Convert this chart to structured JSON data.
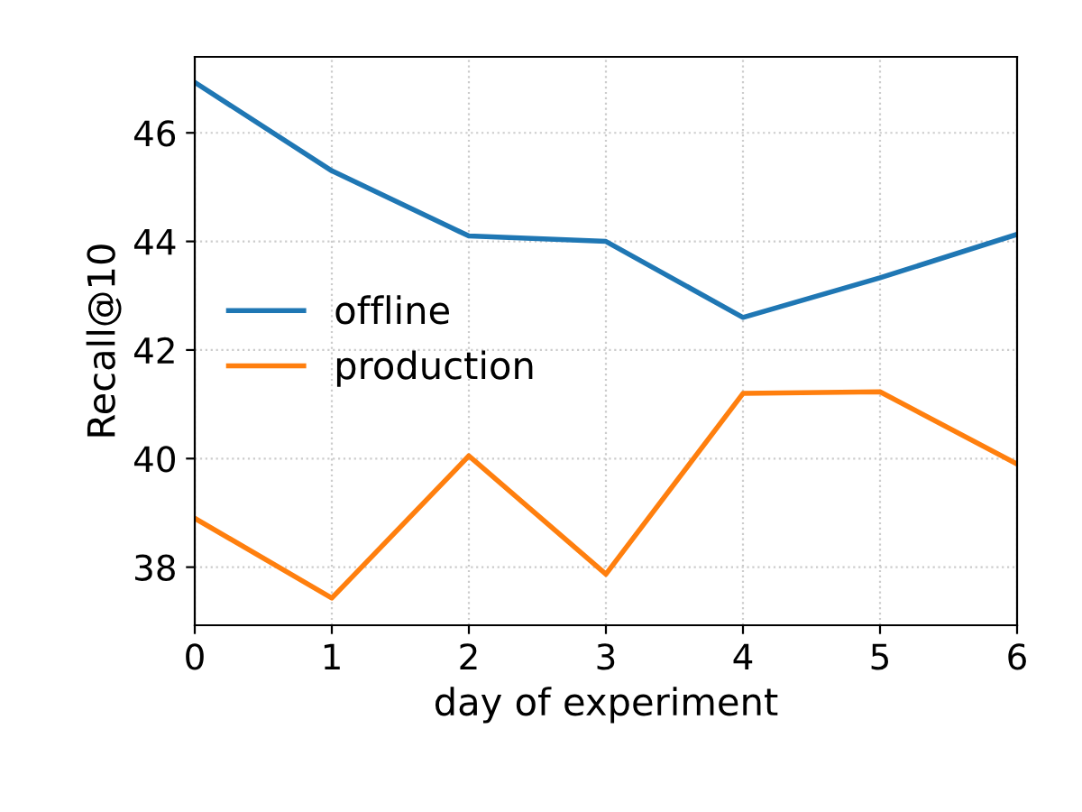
{
  "chart_data": {
    "type": "line",
    "xlabel": "day of experiment",
    "ylabel": "Recall@10",
    "x": [
      0,
      1,
      2,
      3,
      4,
      5,
      6
    ],
    "series": [
      {
        "name": "offline",
        "color": "#1f77b4",
        "values": [
          46.93,
          45.3,
          44.1,
          44.0,
          42.6,
          43.33,
          44.13
        ]
      },
      {
        "name": "production",
        "color": "#ff7f0e",
        "values": [
          38.9,
          37.43,
          40.05,
          37.87,
          41.2,
          41.23,
          39.9
        ]
      }
    ],
    "xlim": [
      0,
      6
    ],
    "xticks": [
      0,
      1,
      2,
      3,
      4,
      5,
      6
    ],
    "ylim": [
      36.93,
      47.4
    ],
    "yticks": [
      38,
      40,
      42,
      44,
      46
    ],
    "grid": true,
    "legend": "center left",
    "marker": "none",
    "line_style": "solid"
  }
}
